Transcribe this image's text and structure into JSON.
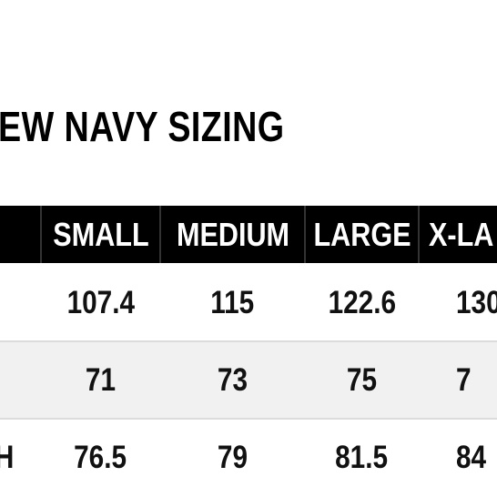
{
  "title": "EW NAVY SIZING",
  "table": {
    "header": [
      "SMALL",
      "MEDIUM",
      "LARGE",
      "X-LA"
    ],
    "rows": [
      {
        "cells": [
          "107.4",
          "115",
          "122.6",
          "130"
        ]
      },
      {
        "cells": [
          "71",
          "73",
          "75",
          "7"
        ]
      },
      {
        "label": "H",
        "cells": [
          "76.5",
          "79",
          "81.5",
          "84"
        ]
      }
    ]
  }
}
